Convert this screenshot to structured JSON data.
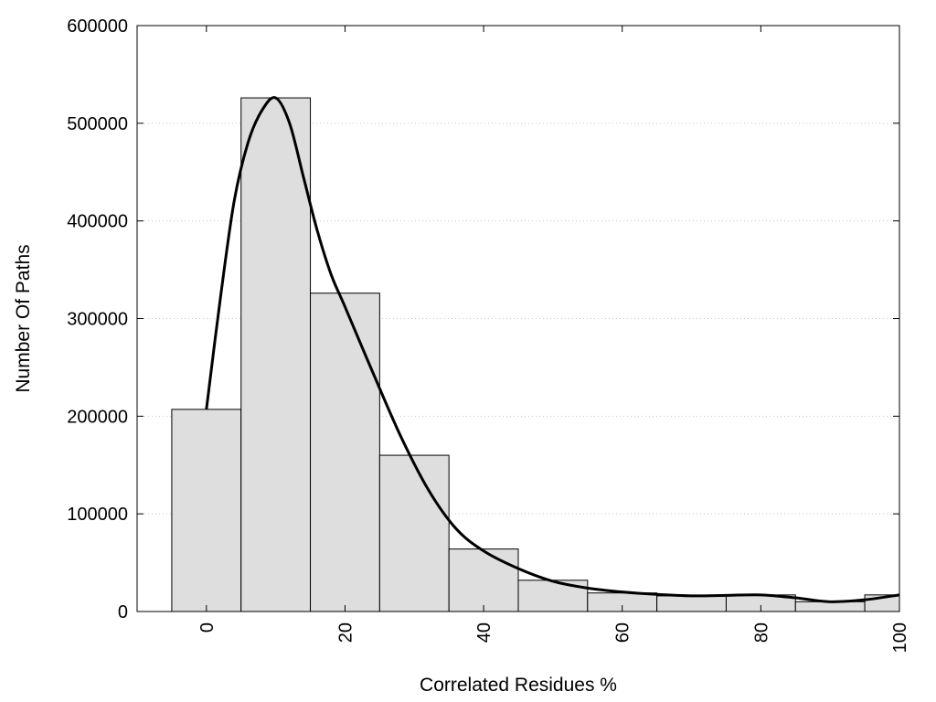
{
  "chart_data": {
    "type": "bar",
    "title": "",
    "xlabel": "Correlated Residues %",
    "ylabel": "Number Of Paths",
    "xlim": [
      -10,
      100
    ],
    "ylim": [
      0,
      600000
    ],
    "bin_width": 10,
    "grid": "horizontal dotted",
    "bar_color": "#dedede",
    "line_color": "#000000",
    "x_ticks": [
      0,
      20,
      40,
      60,
      80,
      100
    ],
    "y_ticks": [
      0,
      100000,
      200000,
      300000,
      400000,
      500000,
      600000
    ],
    "bins": [
      {
        "center": 0,
        "value": 207000
      },
      {
        "center": 10,
        "value": 526000
      },
      {
        "center": 20,
        "value": 326000
      },
      {
        "center": 30,
        "value": 160000
      },
      {
        "center": 40,
        "value": 64000
      },
      {
        "center": 50,
        "value": 32000
      },
      {
        "center": 60,
        "value": 19000
      },
      {
        "center": 70,
        "value": 16000
      },
      {
        "center": 80,
        "value": 17000
      },
      {
        "center": 90,
        "value": 10000
      },
      {
        "center": 100,
        "value": 17000
      }
    ],
    "series": [
      {
        "type": "line",
        "points": [
          [
            0,
            207000
          ],
          [
            2,
            320000
          ],
          [
            4,
            420000
          ],
          [
            6,
            480000
          ],
          [
            8,
            513000
          ],
          [
            10,
            526000
          ],
          [
            12,
            500000
          ],
          [
            14,
            445000
          ],
          [
            16,
            390000
          ],
          [
            18,
            345000
          ],
          [
            20,
            312000
          ],
          [
            24,
            245000
          ],
          [
            28,
            180000
          ],
          [
            32,
            125000
          ],
          [
            36,
            85000
          ],
          [
            40,
            62000
          ],
          [
            45,
            44000
          ],
          [
            50,
            31000
          ],
          [
            55,
            24000
          ],
          [
            60,
            20000
          ],
          [
            65,
            17500
          ],
          [
            70,
            16000
          ],
          [
            75,
            16500
          ],
          [
            80,
            17000
          ],
          [
            85,
            14000
          ],
          [
            90,
            10000
          ],
          [
            95,
            12000
          ],
          [
            100,
            17000
          ]
        ]
      }
    ]
  }
}
